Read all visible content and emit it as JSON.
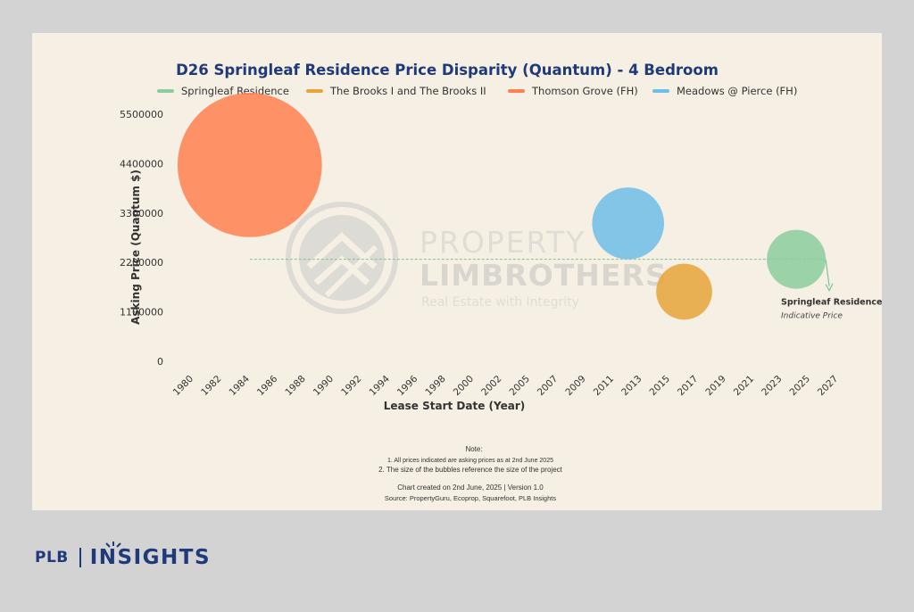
{
  "chart_data": {
    "type": "bubble",
    "title": "D26 Springleaf Residence Price Disparity (Quantum) - 4 Bedroom",
    "xlabel": "Lease Start Date (Year)",
    "ylabel": "Asking Price (Quantum $)",
    "x_ticks": [
      "1980",
      "1982",
      "1984",
      "1986",
      "1988",
      "1990",
      "1992",
      "1994",
      "1996",
      "1998",
      "2000",
      "2002",
      "2005",
      "2007",
      "2009",
      "2011",
      "2013",
      "2015",
      "2017",
      "2019",
      "2021",
      "2023",
      "2025",
      "2027"
    ],
    "y_ticks": [
      0,
      1100000,
      2200000,
      3300000,
      4400000,
      5500000
    ],
    "ylim": [
      0,
      5500000
    ],
    "legend_position": "top",
    "series": [
      {
        "name": "Springleaf Residence",
        "color": "#8ccc9e",
        "x": "2024",
        "y": 2270000,
        "size": 1.0
      },
      {
        "name": "The Brooks I and The Brooks II",
        "color": "#e6a53a",
        "x": "2016",
        "y": 1550000,
        "size": 0.95
      },
      {
        "name": "Thomson Grove (FH)",
        "color": "#ff8050",
        "x": "1984",
        "y": 4370000,
        "size": 2.45
      },
      {
        "name": "Meadows @ Pierce (FH)",
        "color": "#6fbde8",
        "x": "2012",
        "y": 3070000,
        "size": 1.22
      }
    ],
    "reference_line": {
      "y": 2270000,
      "label": "Springleaf Residence",
      "sublabel": "Indicative Price",
      "color": "#7cc594"
    },
    "notes": [
      "Note:",
      "1. All prices indicated are asking prices as at 2nd June 2025",
      "2. The size of the bubbles reference the size of the project",
      "Chart created on 2nd June, 2025 | Version 1.0",
      "Source: PropertyGuru, Ecoprop, Squarefoot, PLB Insights"
    ]
  },
  "watermark": {
    "line1": "PROPERTY",
    "line2": "LIMBROTHERS",
    "line3": "Real Estate with Integrity"
  },
  "footer": {
    "brand": "PLB",
    "section": "INSIGHTS"
  },
  "colors": {
    "background": "#d3d3d4",
    "card": "#f6efe3",
    "title": "#1f3a7a",
    "text": "#333333"
  }
}
